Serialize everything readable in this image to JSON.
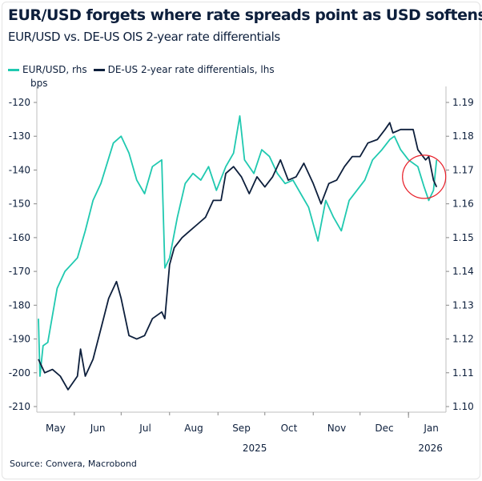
{
  "title": "EUR/USD forgets where rate spreads point as USD softens",
  "subtitle": "EUR/USD vs. DE-US OIS 2-year rate differentials",
  "source": "Source: Convera, Macrobond",
  "colors": {
    "eurusd": "#20c9b0",
    "diff": "#0d1f3c",
    "highlight_circle": "#e8202a",
    "axis": "#bfbfbf"
  },
  "chart_data": {
    "type": "line",
    "left_axis": {
      "unit_label": "bps",
      "range": [
        -210,
        -120
      ],
      "ticks": [
        "-120",
        "-130",
        "-140",
        "-150",
        "-160",
        "-170",
        "-180",
        "-190",
        "-200",
        "-210"
      ]
    },
    "right_axis": {
      "range": [
        1.1,
        1.19
      ],
      "ticks": [
        "1.19",
        "1.18",
        "1.17",
        "1.16",
        "1.15",
        "1.14",
        "1.13",
        "1.12",
        "1.11",
        "1.10"
      ]
    },
    "x_range": [
      "2025-05-08",
      "2026-01-25"
    ],
    "x_month_labels": [
      "May",
      "Jun",
      "Jul",
      "Aug",
      "Sep",
      "Oct",
      "Nov",
      "Dec",
      "Jan"
    ],
    "x_year_labels": [
      "2025",
      "2026"
    ],
    "grid": false,
    "legend_placement": "top-left",
    "annotation": "red circle highlighting January 2026 divergence",
    "series": [
      {
        "name": "EUR/USD, rhs",
        "axis": "right",
        "points": [
          [
            "2025-05-09",
            1.126
          ],
          [
            "2025-05-10",
            1.109
          ],
          [
            "2025-05-12",
            1.118
          ],
          [
            "2025-05-15",
            1.119
          ],
          [
            "2025-05-21",
            1.135
          ],
          [
            "2025-05-26",
            1.14
          ],
          [
            "2025-06-03",
            1.144
          ],
          [
            "2025-06-08",
            1.152
          ],
          [
            "2025-06-13",
            1.161
          ],
          [
            "2025-06-18",
            1.166
          ],
          [
            "2025-06-26",
            1.178
          ],
          [
            "2025-07-01",
            1.18
          ],
          [
            "2025-07-06",
            1.175
          ],
          [
            "2025-07-11",
            1.167
          ],
          [
            "2025-07-16",
            1.163
          ],
          [
            "2025-07-21",
            1.171
          ],
          [
            "2025-07-27",
            1.173
          ],
          [
            "2025-07-29",
            1.141
          ],
          [
            "2025-08-01",
            1.144
          ],
          [
            "2025-08-06",
            1.156
          ],
          [
            "2025-08-11",
            1.166
          ],
          [
            "2025-08-16",
            1.169
          ],
          [
            "2025-08-21",
            1.167
          ],
          [
            "2025-08-26",
            1.171
          ],
          [
            "2025-08-31",
            1.164
          ],
          [
            "2025-09-06",
            1.171
          ],
          [
            "2025-09-11",
            1.175
          ],
          [
            "2025-09-15",
            1.186
          ],
          [
            "2025-09-18",
            1.173
          ],
          [
            "2025-09-24",
            1.169
          ],
          [
            "2025-09-29",
            1.176
          ],
          [
            "2025-10-04",
            1.174
          ],
          [
            "2025-10-09",
            1.169
          ],
          [
            "2025-10-14",
            1.166
          ],
          [
            "2025-10-19",
            1.167
          ],
          [
            "2025-10-24",
            1.163
          ],
          [
            "2025-10-29",
            1.159
          ],
          [
            "2025-11-04",
            1.149
          ],
          [
            "2025-11-09",
            1.161
          ],
          [
            "2025-11-14",
            1.156
          ],
          [
            "2025-11-19",
            1.152
          ],
          [
            "2025-11-24",
            1.161
          ],
          [
            "2025-11-29",
            1.164
          ],
          [
            "2025-12-04",
            1.167
          ],
          [
            "2025-12-09",
            1.173
          ],
          [
            "2025-12-15",
            1.176
          ],
          [
            "2025-12-20",
            1.179
          ],
          [
            "2025-12-23",
            1.18
          ],
          [
            "2025-12-27",
            1.176
          ],
          [
            "2026-01-01",
            1.173
          ],
          [
            "2026-01-07",
            1.171
          ],
          [
            "2026-01-11",
            1.165
          ],
          [
            "2026-01-14",
            1.161
          ],
          [
            "2026-01-17",
            1.164
          ],
          [
            "2026-01-19",
            1.173
          ]
        ]
      },
      {
        "name": "DE-US 2-year rate differentials, lhs",
        "axis": "left",
        "points": [
          [
            "2025-05-09",
            -196
          ],
          [
            "2025-05-13",
            -200
          ],
          [
            "2025-05-18",
            -199
          ],
          [
            "2025-05-23",
            -201
          ],
          [
            "2025-05-28",
            -205
          ],
          [
            "2025-06-03",
            -201
          ],
          [
            "2025-06-05",
            -193
          ],
          [
            "2025-06-08",
            -201
          ],
          [
            "2025-06-13",
            -196
          ],
          [
            "2025-06-18",
            -187
          ],
          [
            "2025-06-23",
            -178
          ],
          [
            "2025-06-28",
            -173
          ],
          [
            "2025-07-01",
            -178
          ],
          [
            "2025-07-06",
            -189
          ],
          [
            "2025-07-11",
            -190
          ],
          [
            "2025-07-16",
            -189
          ],
          [
            "2025-07-21",
            -184
          ],
          [
            "2025-07-27",
            -182
          ],
          [
            "2025-07-29",
            -184
          ],
          [
            "2025-08-01",
            -168
          ],
          [
            "2025-08-04",
            -163
          ],
          [
            "2025-08-09",
            -160
          ],
          [
            "2025-08-14",
            -158
          ],
          [
            "2025-08-19",
            -156
          ],
          [
            "2025-08-24",
            -154
          ],
          [
            "2025-08-29",
            -149
          ],
          [
            "2025-09-03",
            -149
          ],
          [
            "2025-09-06",
            -141
          ],
          [
            "2025-09-11",
            -139
          ],
          [
            "2025-09-16",
            -142
          ],
          [
            "2025-09-21",
            -147
          ],
          [
            "2025-09-26",
            -142
          ],
          [
            "2025-10-01",
            -145
          ],
          [
            "2025-10-06",
            -142
          ],
          [
            "2025-10-11",
            -137
          ],
          [
            "2025-10-16",
            -143
          ],
          [
            "2025-10-21",
            -142
          ],
          [
            "2025-10-26",
            -138
          ],
          [
            "2025-11-01",
            -144
          ],
          [
            "2025-11-06",
            -150
          ],
          [
            "2025-11-11",
            -144
          ],
          [
            "2025-11-16",
            -143
          ],
          [
            "2025-11-21",
            -139
          ],
          [
            "2025-11-26",
            -136
          ],
          [
            "2025-12-01",
            -136
          ],
          [
            "2025-12-06",
            -132
          ],
          [
            "2025-12-12",
            -131
          ],
          [
            "2025-12-17",
            -128
          ],
          [
            "2025-12-20",
            -126
          ],
          [
            "2025-12-22",
            -129
          ],
          [
            "2025-12-27",
            -128
          ],
          [
            "2026-01-01",
            -128
          ],
          [
            "2026-01-04",
            -128
          ],
          [
            "2026-01-07",
            -134
          ],
          [
            "2026-01-12",
            -137
          ],
          [
            "2026-01-14",
            -136
          ],
          [
            "2026-01-17",
            -143
          ],
          [
            "2026-01-19",
            -145
          ]
        ]
      }
    ]
  }
}
